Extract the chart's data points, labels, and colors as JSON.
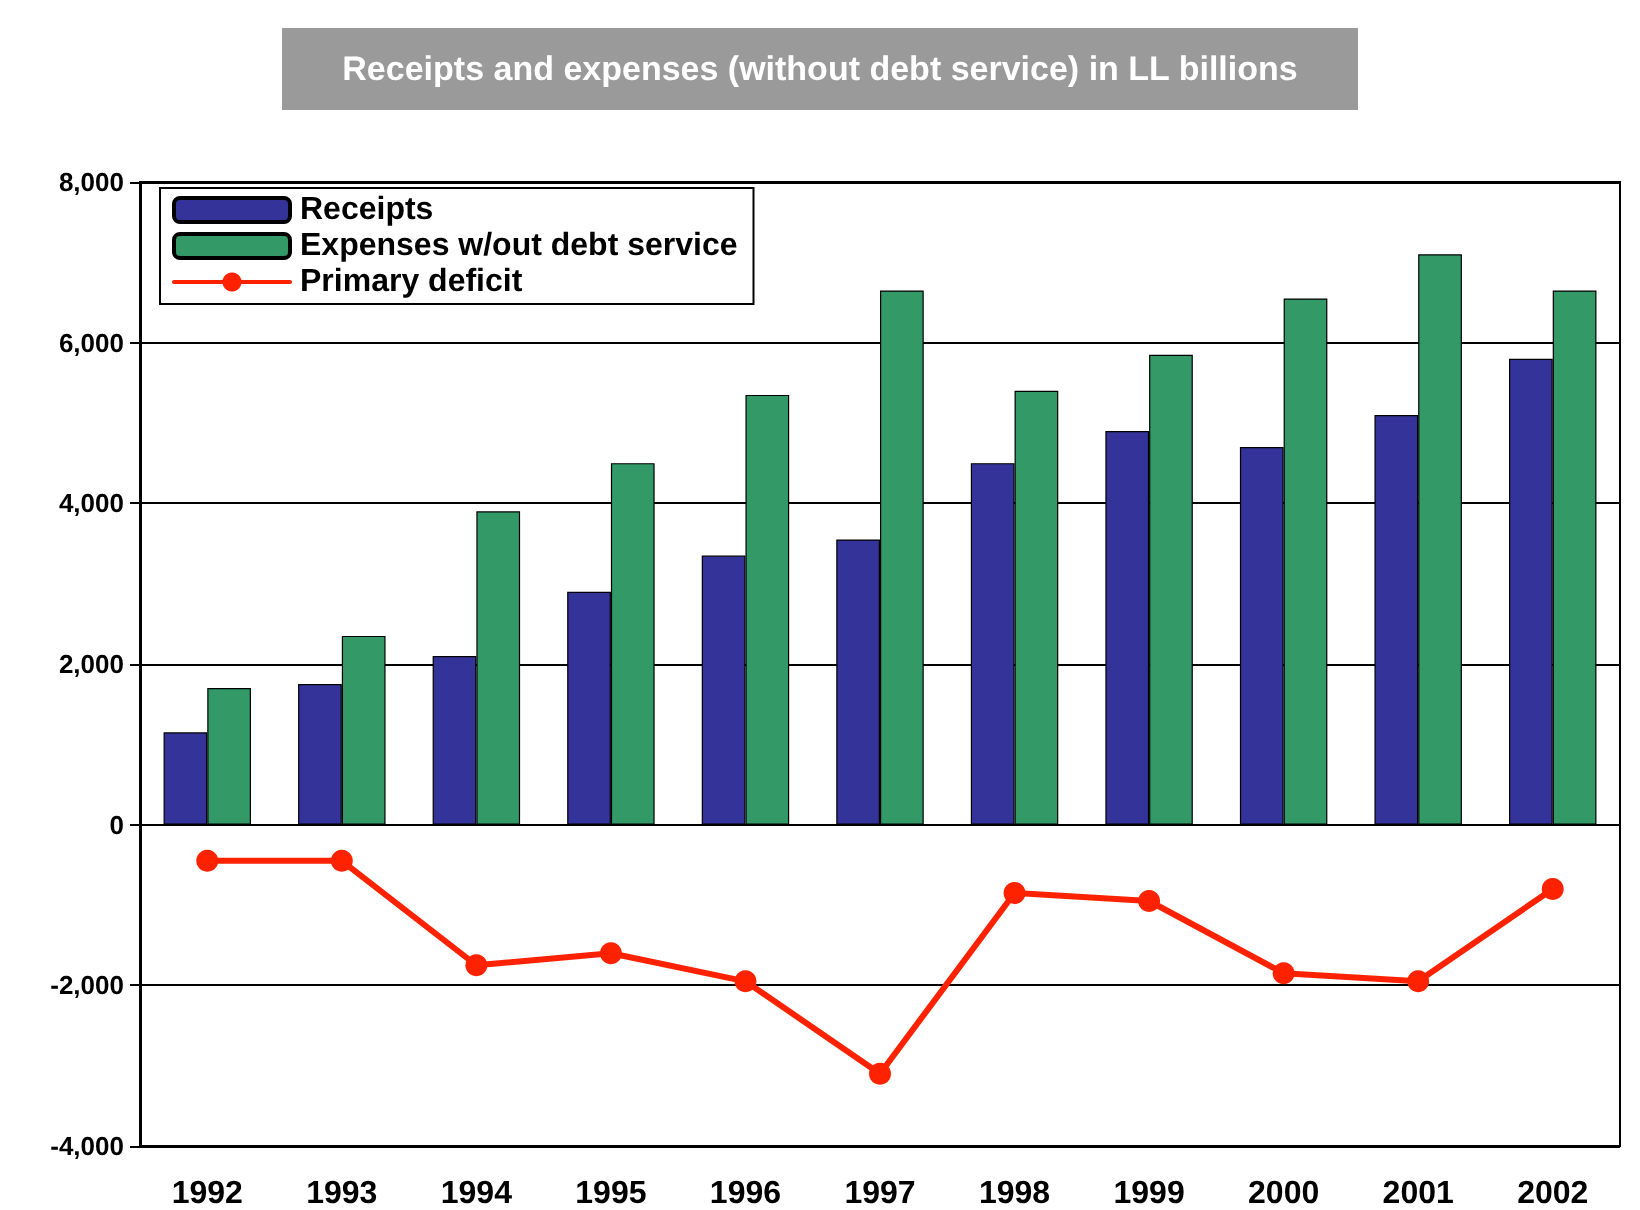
{
  "chart_data": {
    "type": "bar",
    "title": "Receipts and expenses (without debt service) in LL billions",
    "categories": [
      "1992",
      "1993",
      "1994",
      "1995",
      "1996",
      "1997",
      "1998",
      "1999",
      "2000",
      "2001",
      "2002"
    ],
    "series": [
      {
        "name": "Receipts",
        "color": "#333399",
        "values": [
          1150,
          1750,
          2100,
          2900,
          3350,
          3550,
          4500,
          4900,
          4700,
          5100,
          5800
        ]
      },
      {
        "name": "Expenses w/out debt service",
        "color": "#339966",
        "values": [
          1700,
          2350,
          3900,
          4500,
          5350,
          6650,
          5400,
          5850,
          6550,
          7100,
          6650
        ]
      },
      {
        "name": "Primary deficit",
        "type": "line",
        "color": "#ff2200",
        "values": [
          -450,
          -450,
          -1750,
          -1600,
          -1950,
          -3100,
          -850,
          -950,
          -1850,
          -1950,
          -800
        ]
      }
    ],
    "ylim": [
      -4000,
      8000
    ],
    "yticks": [
      {
        "value": -4000,
        "label": "-4,000"
      },
      {
        "value": -2000,
        "label": "-2,000"
      },
      0,
      {
        "value": 2000,
        "label": "2,000"
      },
      {
        "value": 4000,
        "label": "4,000"
      },
      {
        "value": 6000,
        "label": "6,000"
      },
      {
        "value": 8000,
        "label": "8,000"
      }
    ],
    "grid": "y",
    "legend": "top left",
    "marker": "circle",
    "line_style": "solid"
  }
}
